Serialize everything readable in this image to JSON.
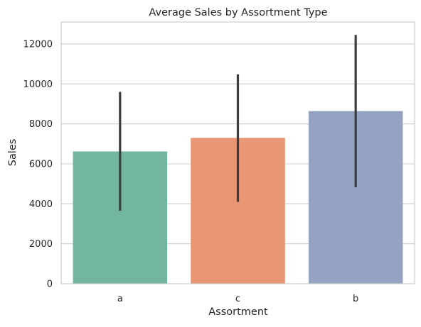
{
  "chart_data": {
    "type": "bar",
    "title": "Average Sales by Assortment Type",
    "xlabel": "Assortment",
    "ylabel": "Sales",
    "categories": [
      "a",
      "c",
      "b"
    ],
    "values": [
      6620,
      7300,
      8640
    ],
    "error_bars": [
      {
        "low": 3650,
        "high": 9600
      },
      {
        "low": 4100,
        "high": 10480
      },
      {
        "low": 4830,
        "high": 12450
      }
    ],
    "ylim": [
      0,
      13100
    ],
    "yticks": [
      0,
      2000,
      4000,
      6000,
      8000,
      10000,
      12000
    ],
    "grid": "horizontal",
    "colors": [
      "#72b6a1",
      "#e99675",
      "#95a3c3"
    ],
    "error_color": "#3d3d3d",
    "grid_color": "#cccccc",
    "axis_color": "#cccccc"
  }
}
